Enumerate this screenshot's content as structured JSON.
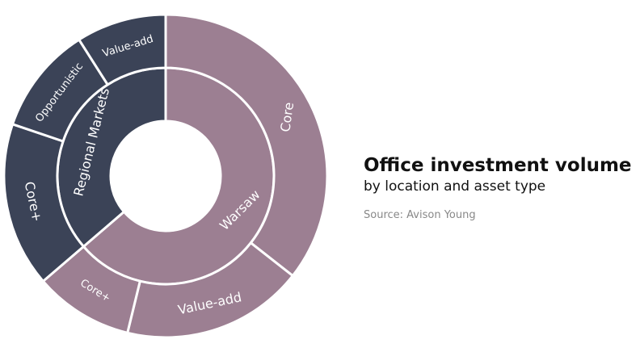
{
  "chart_data": {
    "type": "sunburst",
    "title": "Office investment volume",
    "subtitle": "by location and asset type",
    "source": "Source: Avison Young",
    "colors": {
      "Warsaw": "#9c7f92",
      "Regional Markets": "#3b4357"
    },
    "inner_ring": [
      {
        "label": "Warsaw",
        "share_pct": 63.7
      },
      {
        "label": "Regional Markets",
        "share_pct": 36.3
      }
    ],
    "outer_ring": [
      {
        "label": "Core",
        "parent": "Warsaw",
        "share_pct": 35.6
      },
      {
        "label": "Value-add",
        "parent": "Warsaw",
        "share_pct": 18.2
      },
      {
        "label": "Core+",
        "parent": "Warsaw",
        "share_pct": 9.9
      },
      {
        "label": "Core+",
        "parent": "Regional Markets",
        "share_pct": 16.5
      },
      {
        "label": "Opportunistic",
        "parent": "Regional Markets",
        "share_pct": 10.8
      },
      {
        "label": "Value-add",
        "parent": "Regional Markets",
        "share_pct": 9.0
      }
    ]
  }
}
